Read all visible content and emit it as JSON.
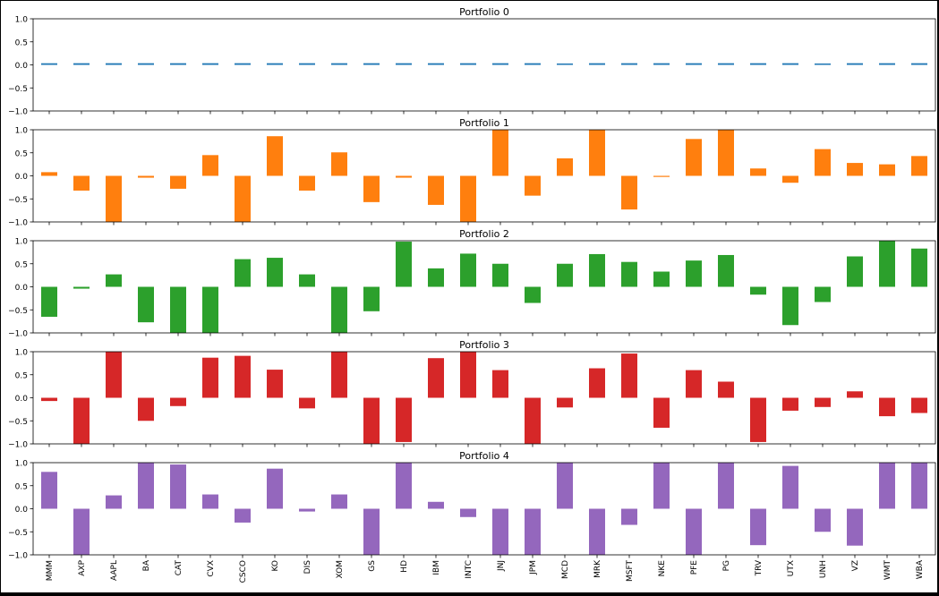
{
  "chart_data": {
    "type": "bar",
    "layout": "5 vertically stacked subplots sharing x axis",
    "categories": [
      "MMM",
      "AXP",
      "AAPL",
      "BA",
      "CAT",
      "CVX",
      "CSCO",
      "KO",
      "DIS",
      "XOM",
      "GS",
      "HD",
      "IBM",
      "INTC",
      "JNJ",
      "JPM",
      "MCD",
      "MRK",
      "MSFT",
      "NKE",
      "PFE",
      "PG",
      "TRV",
      "UTX",
      "UNH",
      "VZ",
      "WMT",
      "WBA"
    ],
    "ylim": [
      -1.0,
      1.0
    ],
    "yticks": [
      "1.0",
      "0.5",
      "0.0",
      "−0.5",
      "−1.0"
    ],
    "grid": false,
    "series": [
      {
        "name": "Portfolio 0",
        "color": "#1f77b4",
        "values": [
          0.035,
          0.036,
          0.036,
          0.036,
          0.036,
          0.036,
          0.036,
          0.036,
          0.036,
          0.036,
          0.036,
          0.036,
          0.036,
          0.036,
          0.036,
          0.036,
          0.03,
          0.036,
          0.036,
          0.036,
          0.036,
          0.036,
          0.036,
          0.036,
          0.03,
          0.036,
          0.036,
          0.036
        ]
      },
      {
        "name": "Portfolio 1",
        "color": "#ff7f0e",
        "values": [
          0.08,
          -0.32,
          -1.0,
          -0.04,
          -0.28,
          0.45,
          -1.0,
          0.86,
          -0.32,
          0.51,
          -0.57,
          -0.04,
          -0.63,
          -1.0,
          1.0,
          -0.43,
          0.38,
          1.0,
          -0.73,
          -0.01,
          0.8,
          1.0,
          0.16,
          -0.15,
          0.58,
          0.28,
          0.25,
          0.43
        ]
      },
      {
        "name": "Portfolio 2",
        "color": "#2ca02c",
        "values": [
          -0.65,
          -0.04,
          0.27,
          -0.77,
          -1.0,
          -1.0,
          0.6,
          0.63,
          0.27,
          -1.0,
          -0.53,
          0.98,
          0.4,
          0.72,
          0.5,
          -0.35,
          0.5,
          0.71,
          0.54,
          0.33,
          0.57,
          0.69,
          -0.17,
          -0.83,
          -0.33,
          0.66,
          1.0,
          0.83
        ]
      },
      {
        "name": "Portfolio 3",
        "color": "#d62728",
        "values": [
          -0.07,
          -1.0,
          1.0,
          -0.5,
          -0.18,
          0.87,
          0.91,
          0.61,
          -0.23,
          1.0,
          -1.0,
          -0.96,
          0.86,
          1.0,
          0.6,
          -1.0,
          -0.21,
          0.64,
          0.96,
          -0.65,
          0.6,
          0.35,
          -0.96,
          -0.28,
          -0.2,
          0.14,
          -0.4,
          -0.33
        ]
      },
      {
        "name": "Portfolio 4",
        "color": "#9467bd",
        "values": [
          0.8,
          -1.0,
          0.29,
          1.0,
          0.96,
          0.31,
          -0.3,
          0.87,
          -0.06,
          0.31,
          -1.0,
          1.0,
          0.15,
          -0.18,
          -1.0,
          -1.0,
          1.0,
          -1.0,
          -0.35,
          1.0,
          -1.0,
          1.0,
          -0.79,
          0.93,
          -0.5,
          -0.8,
          1.0,
          1.0
        ]
      }
    ]
  }
}
